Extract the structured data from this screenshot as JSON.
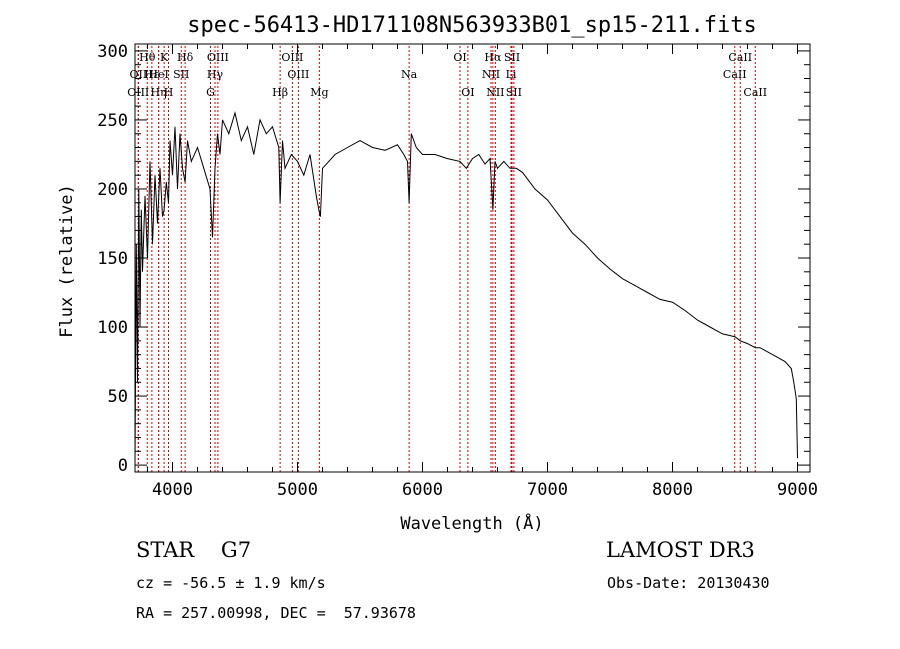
{
  "chart_data": {
    "type": "line",
    "title": "spec-56413-HD171108N563933B01_sp15-211.fits",
    "xlabel": "Wavelength (Å)",
    "ylabel": "Flux (relative)",
    "xlim": [
      3700,
      9100
    ],
    "ylim": [
      -5,
      305
    ],
    "xticks": [
      4000,
      5000,
      6000,
      7000,
      8000,
      9000
    ],
    "yticks": [
      0,
      50,
      100,
      150,
      200,
      250,
      300
    ],
    "grid": false,
    "series": [
      {
        "x": [
          3700,
          3710,
          3720,
          3730,
          3740,
          3750,
          3760,
          3780,
          3800,
          3820,
          3840,
          3860,
          3880,
          3900,
          3920,
          3933,
          3950,
          3968,
          3980,
          4000,
          4020,
          4040,
          4060,
          4080,
          4101,
          4120,
          4150,
          4200,
          4250,
          4300,
          4320,
          4340,
          4360,
          4380,
          4400,
          4450,
          4500,
          4550,
          4600,
          4650,
          4700,
          4750,
          4800,
          4850,
          4861,
          4880,
          4900,
          4950,
          5000,
          5050,
          5100,
          5150,
          5170,
          5183,
          5200,
          5250,
          5300,
          5400,
          5500,
          5600,
          5700,
          5800,
          5850,
          5880,
          5893,
          5910,
          5950,
          6000,
          6100,
          6200,
          6300,
          6350,
          6400,
          6450,
          6500,
          6540,
          6563,
          6580,
          6600,
          6650,
          6700,
          6750,
          6800,
          6900,
          7000,
          7100,
          7200,
          7300,
          7400,
          7500,
          7600,
          7700,
          7800,
          7900,
          8000,
          8100,
          8200,
          8300,
          8400,
          8500,
          8542,
          8600,
          8662,
          8700,
          8800,
          8900,
          8950,
          8970,
          8990,
          9000
        ],
        "y": [
          0,
          160,
          60,
          200,
          100,
          185,
          140,
          195,
          150,
          220,
          160,
          210,
          175,
          215,
          180,
          185,
          205,
          190,
          235,
          210,
          245,
          200,
          240,
          215,
          205,
          235,
          220,
          230,
          215,
          200,
          165,
          215,
          240,
          225,
          250,
          240,
          255,
          235,
          245,
          225,
          250,
          240,
          245,
          230,
          190,
          235,
          215,
          225,
          220,
          210,
          225,
          195,
          185,
          180,
          215,
          220,
          225,
          230,
          235,
          230,
          228,
          232,
          225,
          220,
          190,
          240,
          230,
          225,
          225,
          222,
          220,
          215,
          222,
          225,
          218,
          222,
          185,
          220,
          215,
          220,
          215,
          215,
          212,
          200,
          192,
          180,
          168,
          160,
          150,
          142,
          135,
          130,
          125,
          120,
          118,
          112,
          105,
          100,
          95,
          93,
          90,
          88,
          85,
          85,
          80,
          75,
          70,
          60,
          48,
          5
        ]
      }
    ],
    "lines": [
      {
        "label": "Hθ",
        "x": 3798,
        "row": 0
      },
      {
        "label": "OII",
        "x": 3727,
        "row": 1
      },
      {
        "label": "OIII",
        "x": 3726,
        "row": 2
      },
      {
        "label": "Hε",
        "x": 3835,
        "row": 1
      },
      {
        "label": "Hη",
        "x": 3889,
        "row": 2
      },
      {
        "label": "K",
        "x": 3933,
        "row": 0
      },
      {
        "label": "HeI",
        "x": 3889,
        "row": 1
      },
      {
        "label": "H",
        "x": 3968,
        "row": 2
      },
      {
        "label": "SII",
        "x": 4070,
        "row": 1
      },
      {
        "label": "Hδ",
        "x": 4101,
        "row": 0
      },
      {
        "label": "OIII",
        "x": 4363,
        "row": 0
      },
      {
        "label": "Hγ",
        "x": 4340,
        "row": 1
      },
      {
        "label": "G",
        "x": 4304,
        "row": 2
      },
      {
        "label": "OIII",
        "x": 4959,
        "row": 0
      },
      {
        "label": "OIII",
        "x": 5007,
        "row": 1
      },
      {
        "label": "Hβ",
        "x": 4861,
        "row": 2
      },
      {
        "label": "Mg",
        "x": 5175,
        "row": 2
      },
      {
        "label": "Na",
        "x": 5893,
        "row": 1
      },
      {
        "label": "OI",
        "x": 6300,
        "row": 0
      },
      {
        "label": "OI",
        "x": 6363,
        "row": 2
      },
      {
        "label": "Hα",
        "x": 6563,
        "row": 0
      },
      {
        "label": "SII",
        "x": 6716,
        "row": 0
      },
      {
        "label": "NII",
        "x": 6548,
        "row": 1
      },
      {
        "label": "Li",
        "x": 6708,
        "row": 1
      },
      {
        "label": "NII",
        "x": 6583,
        "row": 2
      },
      {
        "label": "SII",
        "x": 6731,
        "row": 2
      },
      {
        "label": "CaII",
        "x": 8542,
        "row": 0
      },
      {
        "label": "CaII",
        "x": 8498,
        "row": 1
      },
      {
        "label": "CaII",
        "x": 8662,
        "row": 2
      }
    ]
  },
  "info": {
    "object": "STAR    G7",
    "survey": "LAMOST DR3",
    "cz": "cz = -56.5 ± 1.9 km/s",
    "obs_date": "Obs-Date: 20130430",
    "coords": "RA = 257.00998, DEC =  57.93678"
  }
}
